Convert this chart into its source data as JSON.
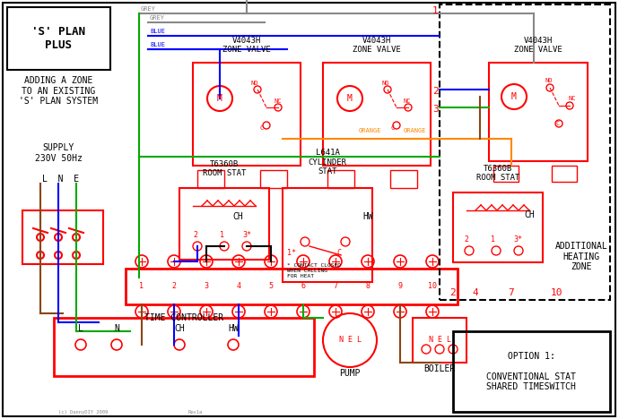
{
  "title": "'S' PLAN PLUS",
  "subtitle": "ADDING A ZONE\nTO AN EXISTING\n'S' PLAN SYSTEM",
  "supply_text": "SUPPLY\n230V 50Hz",
  "lne_text": "L  N  E",
  "bg_color": "#ffffff",
  "border_color": "#000000",
  "red": "#ff0000",
  "blue": "#0000ff",
  "green": "#00aa00",
  "grey": "#888888",
  "orange": "#ff8800",
  "brown": "#8B4513",
  "black": "#000000",
  "dashed_border_color": "#000000",
  "zone_valve_label": "V4043H\nZONE VALVE",
  "room_stat_label": "T6360B\nROOM STAT",
  "cylinder_stat_label": "L641A\nCYLINDER\nSTAT",
  "time_controller_label": "TIME CONTROLLER",
  "pump_label": "PUMP",
  "boiler_label": "BOILER",
  "option_text": "OPTION 1:\n\nCONVENTIONAL STAT\nSHARED TIMESWITCH",
  "additional_zone_text": "ADDITIONAL\nHEATING\nZONE",
  "ch_label": "CH",
  "hw_label": "HW",
  "contact_note": "* CONTACT CLOSED\nWHEN CALLING\nFOR HEAT"
}
